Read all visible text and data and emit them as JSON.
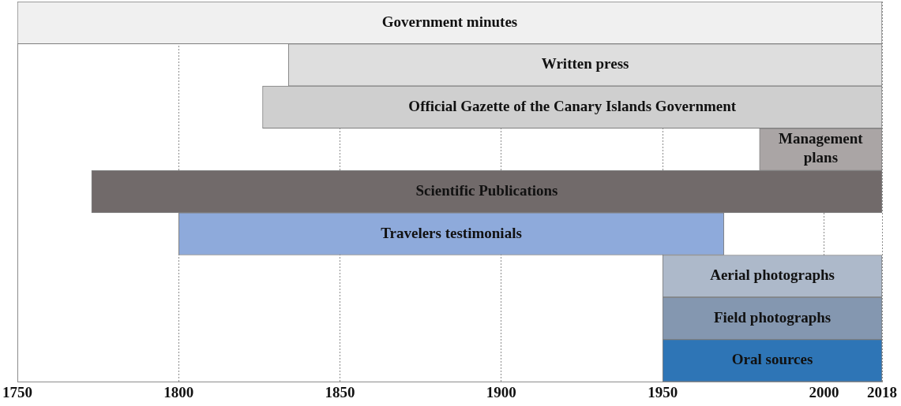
{
  "chart_data": {
    "type": "bar",
    "orientation": "horizontal",
    "categories": [
      "Government minutes",
      "Written press",
      "Official Gazette of the Canary Islands Government",
      "Management plans",
      "Scientific Publications",
      "Travelers testimonials",
      "Aerial photographs",
      "Field photographs",
      "Oral sources"
    ],
    "base": [
      1750,
      1834,
      1826,
      1980,
      1773,
      1800,
      1950,
      1950,
      1950
    ],
    "values": [
      268,
      184,
      192,
      38,
      245,
      169,
      68,
      68,
      68
    ],
    "colors": [
      "#f0f0f0",
      "#dedede",
      "#cfcfcf",
      "#aaa5a5",
      "#716a6a",
      "#8eaadb",
      "#adb9ca",
      "#8497b0",
      "#2e75b6"
    ],
    "xlim": [
      1750,
      2018
    ],
    "xticks": [
      1750,
      1800,
      1850,
      1900,
      1950,
      2000,
      2018
    ],
    "grid": "x"
  }
}
